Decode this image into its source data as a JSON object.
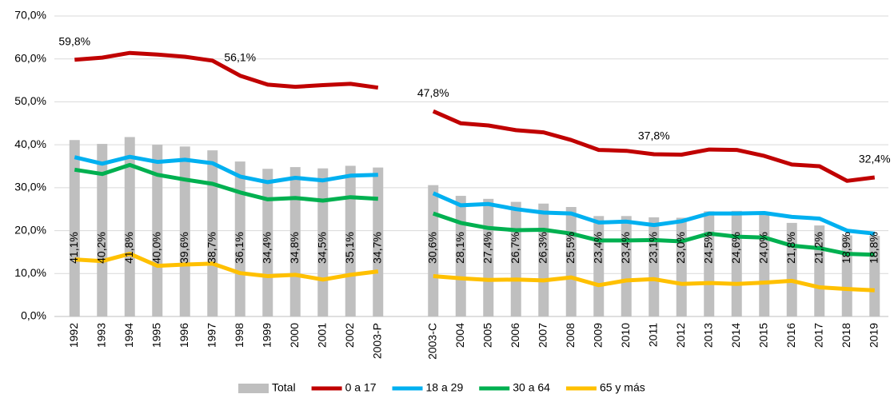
{
  "chart_data": {
    "type": "bar-line",
    "categories": [
      "1992",
      "1993",
      "1994",
      "1995",
      "1996",
      "1997",
      "1998",
      "1999",
      "2000",
      "2001",
      "2002",
      "2003-P",
      null,
      "2003-C",
      "2004",
      "2005",
      "2006",
      "2007",
      "2008",
      "2009",
      "2010",
      "2011",
      "2012",
      "2013",
      "2014",
      "2015",
      "2016",
      "2017",
      "2018",
      "2019"
    ],
    "series": [
      {
        "name": "Total",
        "type": "bar",
        "color": "#bfbfbf",
        "values": [
          41.1,
          40.2,
          41.8,
          40.0,
          39.6,
          38.7,
          36.1,
          34.4,
          34.8,
          34.5,
          35.1,
          34.7,
          null,
          30.6,
          28.1,
          27.4,
          26.7,
          26.3,
          25.5,
          23.4,
          23.4,
          23.1,
          23.0,
          24.5,
          24.6,
          24.0,
          21.8,
          21.2,
          18.9,
          18.8
        ],
        "value_labels": [
          "41,1%",
          "40,2%",
          "41,8%",
          "40,0%",
          "39,6%",
          "38,7%",
          "36,1%",
          "34,4%",
          "34,8%",
          "34,5%",
          "35,1%",
          "34,7%",
          null,
          "30,6%",
          "28,1%",
          "27,4%",
          "26,7%",
          "26,3%",
          "25,5%",
          "23,4%",
          "23,4%",
          "23,1%",
          "23,0%",
          "24,5%",
          "24,6%",
          "24,0%",
          "21,8%",
          "21,2%",
          "18,9%",
          "18,8%"
        ]
      },
      {
        "name": "0 a 17",
        "type": "line",
        "color": "#c00000",
        "values": [
          59.8,
          60.3,
          61.4,
          61.0,
          60.5,
          59.6,
          56.1,
          54.0,
          53.5,
          53.9,
          54.2,
          53.3,
          null,
          47.8,
          45.0,
          44.5,
          43.4,
          42.9,
          41.1,
          38.8,
          38.6,
          37.8,
          37.7,
          38.9,
          38.8,
          37.4,
          35.4,
          35.0,
          31.6,
          32.4
        ],
        "value_labels": [
          "59,8%",
          null,
          null,
          null,
          null,
          null,
          "56,1%",
          null,
          null,
          null,
          null,
          null,
          null,
          "47,8%",
          null,
          null,
          null,
          null,
          null,
          null,
          null,
          "37,8%",
          null,
          null,
          null,
          null,
          null,
          null,
          null,
          "32,4%"
        ]
      },
      {
        "name": "18 a 29",
        "type": "line",
        "color": "#00b0f0",
        "values": [
          37.1,
          35.6,
          37.2,
          36.0,
          36.5,
          35.7,
          32.6,
          31.3,
          32.3,
          31.7,
          32.8,
          33.0,
          null,
          28.7,
          25.9,
          26.2,
          25.0,
          24.2,
          24.0,
          21.9,
          22.1,
          21.3,
          22.2,
          24.0,
          24.0,
          24.1,
          23.2,
          22.8,
          20.0,
          19.3
        ]
      },
      {
        "name": "30 a 64",
        "type": "line",
        "color": "#00b050",
        "values": [
          34.2,
          33.2,
          35.3,
          33.0,
          31.9,
          30.9,
          28.9,
          27.3,
          27.6,
          27.0,
          27.8,
          27.4,
          null,
          24.0,
          21.8,
          20.6,
          20.1,
          20.2,
          19.3,
          17.7,
          17.7,
          17.8,
          17.5,
          19.3,
          18.6,
          18.4,
          16.5,
          15.9,
          14.6,
          14.4
        ]
      },
      {
        "name": "65 y más",
        "type": "line",
        "color": "#ffc000",
        "values": [
          13.3,
          12.9,
          14.6,
          11.8,
          12.1,
          12.3,
          10.1,
          9.4,
          9.7,
          8.6,
          9.7,
          10.5,
          null,
          9.4,
          8.9,
          8.5,
          8.6,
          8.4,
          9.1,
          7.3,
          8.4,
          8.7,
          7.6,
          7.8,
          7.6,
          7.9,
          8.3,
          6.8,
          6.4,
          6.1
        ]
      }
    ],
    "ylim": [
      0,
      70
    ],
    "yticks": [
      {
        "value": 0,
        "label": "0,0%"
      },
      {
        "value": 10,
        "label": "10,0%"
      },
      {
        "value": 20,
        "label": "20,0%"
      },
      {
        "value": 30,
        "label": "30,0%"
      },
      {
        "value": 40,
        "label": "40,0%"
      },
      {
        "value": 50,
        "label": "50,0%"
      },
      {
        "value": 60,
        "label": "60,0%"
      },
      {
        "value": 70,
        "label": "70,0%"
      }
    ],
    "grid": true,
    "legend": "bottom"
  }
}
